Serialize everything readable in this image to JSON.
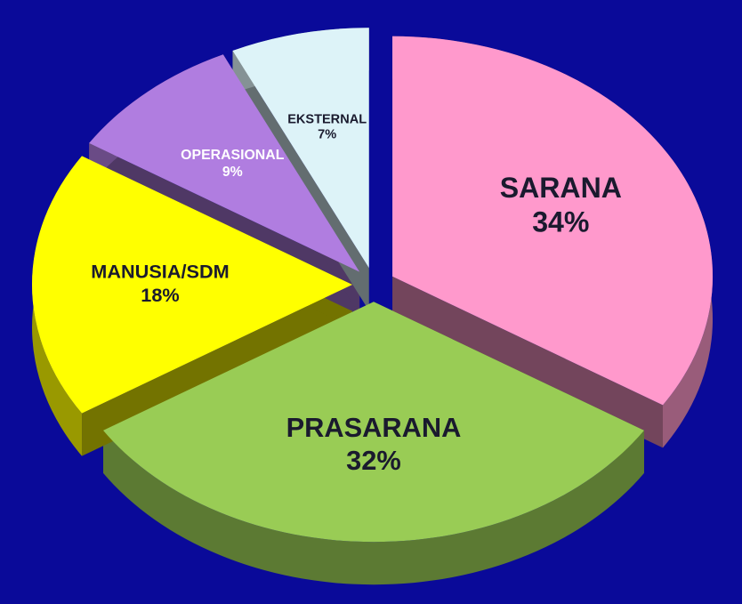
{
  "chart_data": {
    "type": "pie",
    "categories": [
      "SARANA",
      "PRASARANA",
      "MANUSIA/SDM",
      "OPERASIONAL",
      "EKSTERNAL"
    ],
    "values": [
      34,
      32,
      18,
      9,
      7
    ],
    "value_labels": [
      "34%",
      "32%",
      "18%",
      "9%",
      "7%"
    ],
    "colors": [
      "#ff99cc",
      "#99cc55",
      "#ffff00",
      "#b07de0",
      "#ddf3f8"
    ]
  }
}
